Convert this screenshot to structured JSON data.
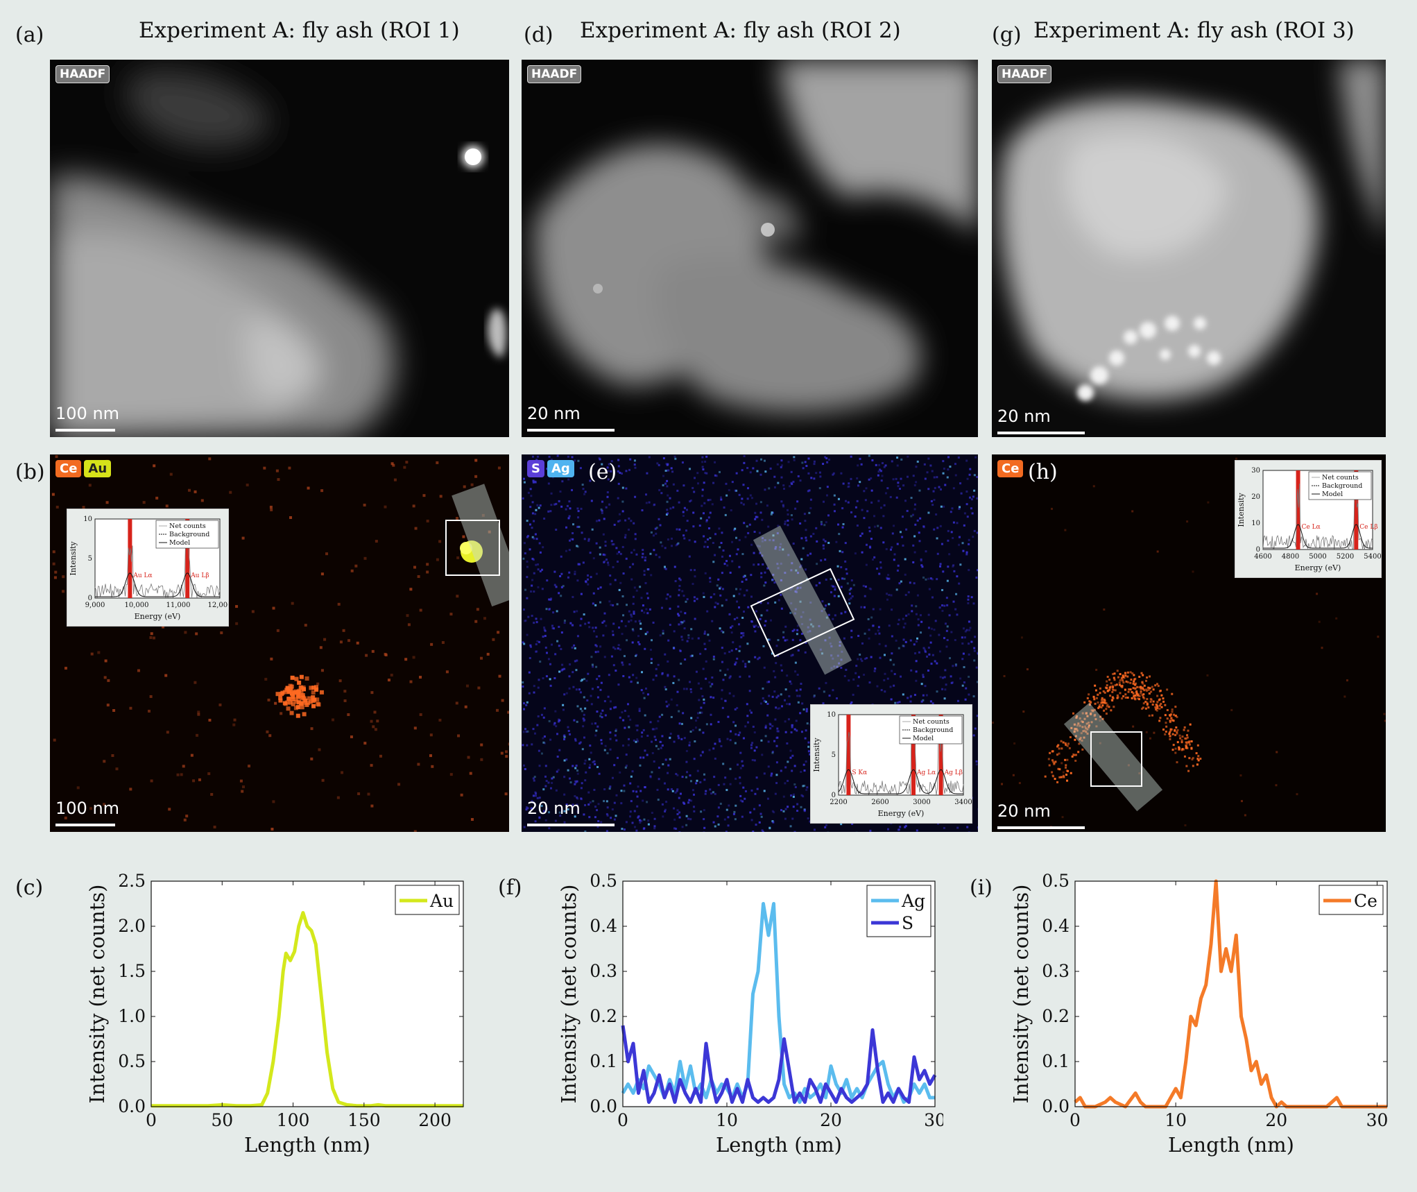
{
  "panels": {
    "a": {
      "letter": "(a)",
      "title": "Experiment A: fly ash (ROI 1)",
      "chip": "HAADF",
      "scalebar": "100 nm"
    },
    "d": {
      "letter": "(d)",
      "title": "Experiment A: fly ash (ROI 2)",
      "chip": "HAADF",
      "scalebar": "20 nm"
    },
    "g": {
      "letter": "(g)",
      "title": "Experiment A: fly ash (ROI 3)",
      "chip": "HAADF",
      "scalebar": "20 nm"
    },
    "b": {
      "letter": "(b)",
      "chips": [
        {
          "label": "Ce",
          "color": "#f26b21"
        },
        {
          "label": "Au",
          "color": "#d6e21a"
        }
      ],
      "scalebar": "100 nm"
    },
    "e": {
      "letter": "(e)",
      "chips": [
        {
          "label": "S",
          "color": "#5b3fd8"
        },
        {
          "label": "Ag",
          "color": "#4fb3f0"
        }
      ],
      "scalebar": "20 nm"
    },
    "h": {
      "letter": "(h)",
      "chips": [
        {
          "label": "Ce",
          "color": "#f26b21"
        }
      ],
      "scalebar": "20 nm"
    },
    "c": {
      "letter": "(c)"
    },
    "f": {
      "letter": "(f)"
    },
    "i": {
      "letter": "(i)"
    }
  },
  "insets": {
    "b": {
      "legend": [
        "Net counts",
        "Background",
        "Model"
      ],
      "ylabel": "Intensity",
      "xlabel": "Energy (eV)",
      "xticks": [
        "9,000",
        "10,000",
        "11,000",
        "12,000"
      ],
      "yticks": [
        "0",
        "5",
        "10"
      ],
      "peaks": [
        "Au Lα",
        "Au Lβ"
      ]
    },
    "e": {
      "legend": [
        "Net counts",
        "Background",
        "Model"
      ],
      "ylabel": "Intensity",
      "xlabel": "Energy (eV)",
      "xticks": [
        "2200",
        "2600",
        "3000",
        "3400"
      ],
      "yticks": [
        "0",
        "5",
        "10"
      ],
      "peaks": [
        "S Kα",
        "Ag Lα",
        "Ag Lβ"
      ]
    },
    "h": {
      "legend": [
        "Net counts",
        "Background",
        "Model"
      ],
      "ylabel": "Intensity",
      "xlabel": "Energy (eV)",
      "xticks": [
        "4600",
        "4800",
        "5000",
        "5200",
        "5400"
      ],
      "yticks": [
        "0",
        "10",
        "20",
        "30"
      ],
      "peaks": [
        "Ce Lα",
        "Ce Lβ"
      ]
    }
  },
  "chart_data": [
    {
      "type": "line",
      "xlabel": "Length (nm)",
      "ylabel": "Intensity (net counts)",
      "xlim": [
        0,
        220
      ],
      "ylim": [
        0,
        2.5
      ],
      "xticks": [
        0,
        50,
        100,
        150,
        200
      ],
      "yticks": [
        0.0,
        0.5,
        1.0,
        1.5,
        2.0,
        2.5
      ],
      "ytick_labels": [
        "0.0",
        "0.5",
        "1.0",
        "1.5",
        "2.0",
        "2.5"
      ],
      "legend": "top-right",
      "series": [
        {
          "name": "Au",
          "color": "#d4e81c",
          "x": [
            0,
            20,
            40,
            50,
            60,
            70,
            78,
            82,
            86,
            90,
            93,
            95,
            98,
            101,
            104,
            107,
            110,
            113,
            116,
            120,
            124,
            128,
            132,
            138,
            145,
            155,
            160,
            165,
            180,
            200,
            220
          ],
          "y": [
            0.01,
            0.01,
            0.01,
            0.02,
            0.01,
            0.01,
            0.02,
            0.15,
            0.5,
            1.0,
            1.5,
            1.7,
            1.62,
            1.72,
            2.0,
            2.15,
            2.0,
            1.95,
            1.8,
            1.2,
            0.6,
            0.2,
            0.05,
            0.02,
            0.01,
            0.01,
            0.02,
            0.01,
            0.01,
            0.01,
            0.01
          ]
        }
      ]
    },
    {
      "type": "line",
      "xlabel": "Length (nm)",
      "ylabel": "Intensity (net counts)",
      "xlim": [
        0,
        30
      ],
      "ylim": [
        0,
        0.5
      ],
      "xticks": [
        0,
        10,
        20,
        30
      ],
      "yticks": [
        0.0,
        0.1,
        0.2,
        0.3,
        0.4,
        0.5
      ],
      "ytick_labels": [
        "0.0",
        "0.1",
        "0.2",
        "0.3",
        "0.4",
        "0.5"
      ],
      "legend": "top-right",
      "series": [
        {
          "name": "Ag",
          "color": "#5bbcee",
          "x": [
            0,
            0.5,
            1,
            1.5,
            2,
            2.5,
            3,
            3.5,
            4,
            4.5,
            5,
            5.5,
            6,
            6.5,
            7,
            7.5,
            8,
            8.5,
            9,
            9.5,
            10,
            10.5,
            11,
            11.5,
            12,
            12.5,
            13,
            13.5,
            14,
            14.5,
            15,
            15.5,
            16,
            16.5,
            17,
            17.5,
            18,
            18.5,
            19,
            19.5,
            20,
            20.5,
            21,
            21.5,
            22,
            22.5,
            23,
            23.5,
            24,
            24.5,
            25,
            25.5,
            26,
            26.5,
            27,
            27.5,
            28,
            28.5,
            29,
            29.5,
            30
          ],
          "y": [
            0.03,
            0.05,
            0.03,
            0.06,
            0.04,
            0.09,
            0.07,
            0.05,
            0.02,
            0.06,
            0.03,
            0.1,
            0.04,
            0.09,
            0.03,
            0.05,
            0.02,
            0.06,
            0.03,
            0.05,
            0.04,
            0.02,
            0.05,
            0.02,
            0.05,
            0.25,
            0.3,
            0.45,
            0.38,
            0.45,
            0.2,
            0.05,
            0.02,
            0.03,
            0.01,
            0.04,
            0.02,
            0.03,
            0.05,
            0.02,
            0.09,
            0.05,
            0.03,
            0.06,
            0.02,
            0.04,
            0.02,
            0.05,
            0.07,
            0.09,
            0.1,
            0.05,
            0.02,
            0.04,
            0.01,
            0.02,
            0.05,
            0.03,
            0.05,
            0.02,
            0.02
          ]
        },
        {
          "name": "S",
          "color": "#3c37d6",
          "x": [
            0,
            0.5,
            1,
            1.5,
            2,
            2.5,
            3,
            3.5,
            4,
            4.5,
            5,
            5.5,
            6,
            6.5,
            7,
            7.5,
            8,
            8.5,
            9,
            9.5,
            10,
            10.5,
            11,
            11.5,
            12,
            12.5,
            13,
            13.5,
            14,
            14.5,
            15,
            15.5,
            16,
            16.5,
            17,
            17.5,
            18,
            18.5,
            19,
            19.5,
            20,
            20.5,
            21,
            21.5,
            22,
            22.5,
            23,
            23.5,
            24,
            24.5,
            25,
            25.5,
            26,
            26.5,
            27,
            27.5,
            28,
            28.5,
            29,
            29.5,
            30
          ],
          "y": [
            0.18,
            0.1,
            0.14,
            0.03,
            0.08,
            0.01,
            0.03,
            0.07,
            0.02,
            0.05,
            0.01,
            0.06,
            0.03,
            0.01,
            0.04,
            0.01,
            0.14,
            0.06,
            0.01,
            0.03,
            0.06,
            0.01,
            0.04,
            0.01,
            0.06,
            0.02,
            0.01,
            0.02,
            0.01,
            0.02,
            0.06,
            0.15,
            0.08,
            0.01,
            0.03,
            0.01,
            0.06,
            0.04,
            0.01,
            0.05,
            0.03,
            0.01,
            0.04,
            0.02,
            0.01,
            0.02,
            0.03,
            0.05,
            0.17,
            0.08,
            0.01,
            0.03,
            0.01,
            0.04,
            0.02,
            0.01,
            0.11,
            0.06,
            0.08,
            0.05,
            0.07
          ]
        }
      ]
    },
    {
      "type": "line",
      "xlabel": "Length (nm)",
      "ylabel": "Intensity (net counts)",
      "xlim": [
        0,
        31
      ],
      "ylim": [
        0,
        0.5
      ],
      "xticks": [
        0,
        10,
        20,
        30
      ],
      "yticks": [
        0.0,
        0.1,
        0.2,
        0.3,
        0.4,
        0.5
      ],
      "ytick_labels": [
        "0.0",
        "0.1",
        "0.2",
        "0.3",
        "0.4",
        "0.5"
      ],
      "legend": "top-right",
      "series": [
        {
          "name": "Ce",
          "color": "#f47a28",
          "x": [
            0,
            0.5,
            1,
            2,
            3,
            3.5,
            4,
            5,
            6,
            6.5,
            7,
            8,
            9,
            10,
            10.5,
            11,
            11.5,
            12,
            12.5,
            13,
            13.5,
            14,
            14.5,
            15,
            15.5,
            16,
            16.5,
            17,
            17.5,
            18,
            18.5,
            19,
            19.5,
            20,
            20.5,
            21,
            22,
            23,
            24,
            25,
            26,
            26.5,
            27,
            28,
            29,
            30,
            31
          ],
          "y": [
            0.01,
            0.02,
            0.0,
            0.0,
            0.01,
            0.02,
            0.01,
            0.0,
            0.03,
            0.01,
            0.0,
            0.0,
            0.0,
            0.04,
            0.02,
            0.1,
            0.2,
            0.18,
            0.24,
            0.27,
            0.36,
            0.5,
            0.3,
            0.35,
            0.3,
            0.38,
            0.2,
            0.15,
            0.08,
            0.1,
            0.05,
            0.07,
            0.02,
            0.0,
            0.01,
            0.0,
            0.0,
            0.0,
            0.0,
            0.0,
            0.02,
            0.0,
            0.0,
            0.0,
            0.0,
            0.0,
            0.0
          ]
        }
      ]
    }
  ]
}
